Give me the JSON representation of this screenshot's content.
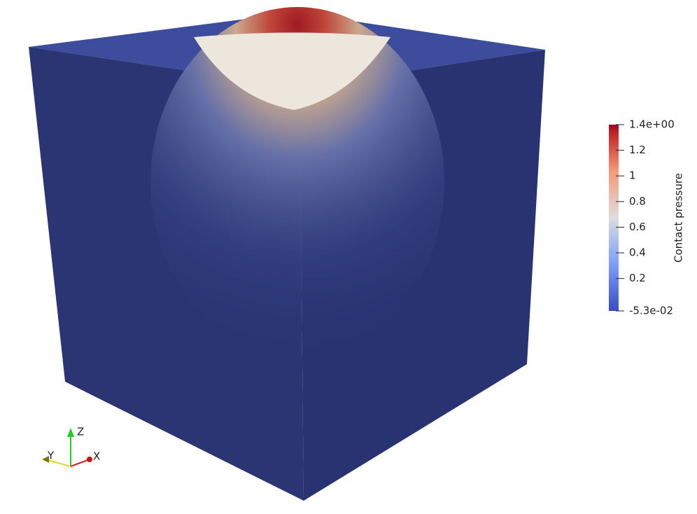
{
  "colorbar": {
    "title": "Contact pressure",
    "ticks": [
      {
        "value": 1.4,
        "label": "1.4e+00"
      },
      {
        "value": 1.2,
        "label": "1.2"
      },
      {
        "value": 1,
        "label": "1"
      },
      {
        "value": 0.8,
        "label": "0.8"
      },
      {
        "value": 0.6,
        "label": "0.6"
      },
      {
        "value": 0.4,
        "label": "0.4"
      },
      {
        "value": 0.2,
        "label": "0.2"
      },
      {
        "value": -0.053,
        "label": "-5.3e-02"
      }
    ]
  },
  "axes": {
    "x": "X",
    "y": "Y",
    "z": "Z"
  }
}
